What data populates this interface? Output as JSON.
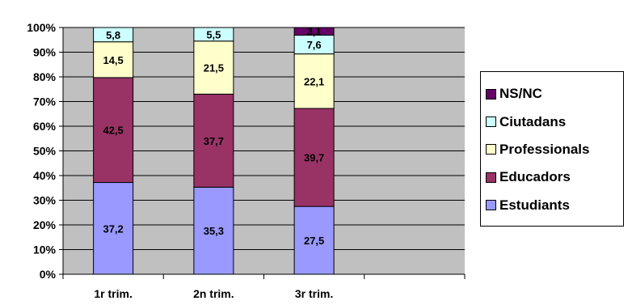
{
  "chart_data": {
    "type": "bar",
    "stacked": true,
    "percent": true,
    "categories": [
      "1r trim.",
      "2n trim.",
      "3r trim."
    ],
    "series": [
      {
        "name": "Estudiants",
        "color": "#9999ff",
        "values": [
          37.2,
          35.3,
          27.5
        ],
        "labels": [
          "37,2",
          "35,3",
          "27,5"
        ]
      },
      {
        "name": "Educadors",
        "color": "#993366",
        "values": [
          42.5,
          37.7,
          39.7
        ],
        "labels": [
          "42,5",
          "37,7",
          "39,7"
        ]
      },
      {
        "name": "Professionals",
        "color": "#ffffcc",
        "values": [
          14.5,
          21.5,
          22.1
        ],
        "labels": [
          "14,5",
          "21,5",
          "22,1"
        ]
      },
      {
        "name": "Ciutadans",
        "color": "#ccffff",
        "values": [
          5.8,
          5.5,
          7.6
        ],
        "labels": [
          "5,8",
          "5,5",
          "7,6"
        ]
      },
      {
        "name": "NS/NC",
        "color": "#660066",
        "values": [
          0,
          0,
          3.1
        ],
        "labels": [
          "",
          "",
          "3,1"
        ]
      }
    ],
    "y_ticks": [
      "0%",
      "10%",
      "20%",
      "30%",
      "40%",
      "50%",
      "60%",
      "70%",
      "80%",
      "90%",
      "100%"
    ],
    "ylim": [
      0,
      100
    ],
    "slots": 4,
    "grid": true,
    "plot_background": "#c0c0c0",
    "legend_position": "right",
    "legend_order": [
      "NS/NC",
      "Ciutadans",
      "Professionals",
      "Educadors",
      "Estudiants"
    ]
  }
}
